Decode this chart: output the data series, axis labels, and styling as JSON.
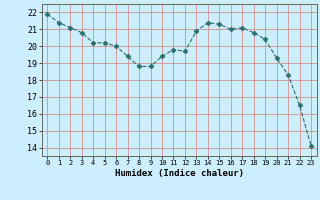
{
  "x": [
    0,
    1,
    2,
    3,
    4,
    5,
    6,
    7,
    8,
    9,
    10,
    11,
    12,
    13,
    14,
    15,
    16,
    17,
    18,
    19,
    20,
    21,
    22,
    23
  ],
  "y": [
    21.9,
    21.4,
    21.1,
    20.8,
    20.2,
    20.2,
    20.0,
    19.4,
    18.8,
    18.8,
    19.4,
    19.8,
    19.7,
    20.9,
    21.4,
    21.3,
    21.0,
    21.1,
    20.8,
    20.4,
    19.3,
    18.3,
    16.5,
    14.1
  ],
  "line_color": "#2d6e6e",
  "marker": "D",
  "marker_size": 2.5,
  "bg_color": "#cceeff",
  "grid_color_h": "#e0a0a0",
  "grid_color_v": "#e0a0a0",
  "xlabel": "Humidex (Indice chaleur)",
  "xlim": [
    -0.5,
    23.5
  ],
  "ylim": [
    13.5,
    22.5
  ],
  "yticks": [
    14,
    15,
    16,
    17,
    18,
    19,
    20,
    21,
    22
  ],
  "xticks": [
    0,
    1,
    2,
    3,
    4,
    5,
    6,
    7,
    8,
    9,
    10,
    11,
    12,
    13,
    14,
    15,
    16,
    17,
    18,
    19,
    20,
    21,
    22,
    23
  ]
}
